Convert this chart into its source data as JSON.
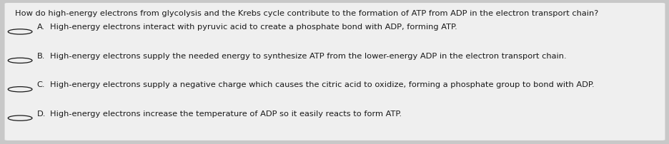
{
  "background_color": "#c8c8c8",
  "card_color": "#efefef",
  "question": "How do high-energy electrons from glycolysis and the Krebs cycle contribute to the formation of ATP from ADP in the electron transport chain?",
  "options": [
    {
      "label": "A.",
      "text": "High-energy electrons interact with pyruvic acid to create a phosphate bond with ADP, forming ATP."
    },
    {
      "label": "B.",
      "text": "High-energy electrons supply the needed energy to synthesize ATP from the lower-energy ADP in the electron transport chain."
    },
    {
      "label": "C.",
      "text": "High-energy electrons supply a negative charge which causes the citric acid to oxidize, forming a phosphate group to bond with ADP."
    },
    {
      "label": "D.",
      "text": "High-energy electrons increase the temperature of ADP so it easily reacts to form ATP."
    }
  ],
  "question_fontsize": 8.2,
  "option_fontsize": 8.2,
  "text_color": "#1a1a1a",
  "circle_color": "#1a1a1a",
  "fig_width": 9.37,
  "fig_height": 2.02,
  "dpi": 100
}
